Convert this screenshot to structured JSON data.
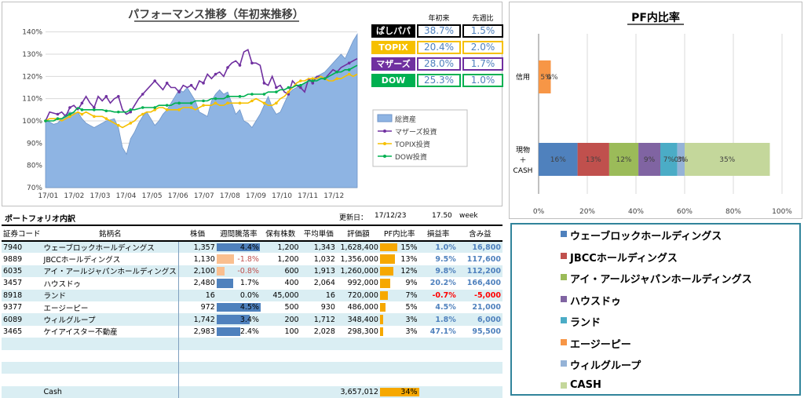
{
  "chart_data": [
    {
      "type": "area+line",
      "title": "パフォーマンス推移（年初来推移）",
      "x_ticks": [
        "17/01",
        "17/02",
        "17/03",
        "17/04",
        "17/05",
        "17/06",
        "17/07",
        "17/08",
        "17/09",
        "17/10",
        "17/11",
        "17/12"
      ],
      "y_ticks": [
        "70%",
        "80%",
        "90%",
        "100%",
        "110%",
        "120%",
        "130%",
        "140%"
      ],
      "ylim": [
        70,
        142
      ],
      "series": [
        {
          "name": "総資産",
          "type": "area",
          "color": "#8eb4e3",
          "values": [
            100,
            99.5,
            98.5,
            99,
            101,
            103,
            104,
            103.5,
            104,
            101,
            99,
            98,
            97,
            98,
            99,
            100,
            100.5,
            101,
            97,
            88,
            85,
            92,
            95,
            99,
            102,
            104,
            101,
            98,
            100,
            103,
            105,
            108,
            111,
            114,
            113,
            115,
            112,
            109,
            104,
            103,
            102,
            109,
            112,
            114,
            112,
            113,
            108,
            103,
            105,
            100,
            99,
            97,
            100,
            103,
            107,
            111,
            106,
            103,
            104,
            108,
            112,
            114,
            115,
            116,
            117,
            118,
            119,
            120,
            121,
            122,
            124,
            126,
            128,
            130,
            128,
            132,
            136,
            139
          ]
        },
        {
          "name": "マザーズ投資",
          "type": "line",
          "color": "#7030a0",
          "values": [
            100,
            104,
            103.5,
            103,
            104,
            102,
            106,
            107,
            105,
            108,
            111,
            108,
            106,
            111,
            109,
            111,
            108,
            110,
            111,
            105,
            103,
            104,
            107,
            110,
            112,
            114,
            116,
            118,
            116,
            114,
            117,
            115,
            115,
            113,
            116,
            115,
            116,
            114,
            118,
            117,
            121,
            119,
            121,
            122,
            120,
            124,
            126,
            127,
            125,
            131,
            132,
            126,
            126,
            125,
            117,
            116,
            120,
            115,
            116,
            113,
            112,
            118,
            116,
            115,
            113,
            119,
            117,
            120,
            120,
            119,
            121,
            123,
            122,
            124,
            125,
            126,
            127,
            128
          ]
        },
        {
          "name": "TOPIX投資",
          "type": "line",
          "color": "#f6c000",
          "values": [
            100,
            101,
            101,
            101,
            100,
            101,
            102,
            103,
            104,
            103,
            104,
            103,
            102,
            102,
            102,
            101,
            100,
            99,
            98,
            97,
            98,
            99,
            100,
            102,
            103,
            104,
            104,
            105,
            106,
            106,
            105,
            105,
            105,
            105,
            106,
            106,
            106,
            105,
            106,
            107,
            107,
            107,
            108,
            107,
            107,
            108,
            108,
            108,
            108,
            108,
            108,
            109,
            110,
            109,
            108,
            107,
            107,
            108,
            110,
            111,
            113,
            115,
            117,
            118,
            118,
            119,
            119,
            119,
            120,
            119,
            118,
            118,
            119,
            119,
            120,
            121,
            120,
            121
          ]
        },
        {
          "name": "DOW投資",
          "type": "line",
          "color": "#00b050",
          "values": [
            100,
            100,
            100,
            101,
            101,
            102,
            103,
            104,
            106,
            105,
            105,
            105,
            105,
            105,
            105,
            104.5,
            104.5,
            104,
            104,
            104,
            104,
            105,
            105,
            105.5,
            106,
            106,
            106,
            106,
            107,
            107,
            107,
            107,
            108,
            108,
            108,
            108,
            108,
            109,
            109,
            109,
            109,
            110,
            110,
            110,
            110,
            111,
            111,
            111,
            111,
            111,
            112,
            112,
            112,
            112,
            112,
            113,
            113,
            113,
            114,
            114,
            115,
            115,
            116,
            116,
            117,
            118,
            118,
            118,
            119,
            119,
            120,
            121,
            122,
            122,
            123,
            123,
            124,
            125
          ]
        }
      ],
      "legend_position": "right"
    },
    {
      "type": "stacked-bar-horizontal",
      "title": "PF内比率",
      "categories": [
        "信用",
        "現物\n＋\nCASH"
      ],
      "x_ticks": [
        "0%",
        "20%",
        "40%",
        "60%",
        "80%",
        "100%"
      ],
      "series": [
        {
          "name": "ウェーブロックホールディングス",
          "color": "#4f81bd",
          "values": [
            0,
            16
          ]
        },
        {
          "name": "JBCCホールディングス",
          "color": "#c0504d",
          "values": [
            0,
            13
          ]
        },
        {
          "name": "アイ・アールジャパンホールディングス",
          "color": "#9bbb59",
          "values": [
            0,
            12
          ]
        },
        {
          "name": "ハウスドゥ",
          "color": "#8064a2",
          "values": [
            0,
            9
          ]
        },
        {
          "name": "ランド",
          "color": "#4bacc6",
          "values": [
            0,
            7
          ]
        },
        {
          "name": "エージーピー",
          "color": "#f79646",
          "values": [
            5,
            0
          ]
        },
        {
          "name": "ウィルグループ",
          "color": "#95b3d7",
          "values": [
            0,
            3
          ]
        },
        {
          "name": "CASH",
          "color": "#c4d79b",
          "values": [
            0,
            35
          ]
        }
      ],
      "labels_shown": {
        "信用": [
          "5%",
          "0%"
        ],
        "現物＋CASH": [
          "16%",
          "13%",
          "12%",
          "9%",
          "7%",
          "0%",
          "3%",
          "35%"
        ]
      }
    }
  ],
  "perf_table": {
    "headers": [
      "年初来",
      "先週比"
    ],
    "rows": [
      {
        "label": "ぱしパパ",
        "ytd": "38.7%",
        "week": "1.5%",
        "bg": "#000000",
        "border": "#000000"
      },
      {
        "label": "TOPIX",
        "ytd": "20.4%",
        "week": "2.0%",
        "bg": "#f6c000",
        "border": "#f6c000"
      },
      {
        "label": "マザーズ",
        "ytd": "28.0%",
        "week": "1.7%",
        "bg": "#7030a0",
        "border": "#7030a0"
      },
      {
        "label": "DOW",
        "ytd": "25.3%",
        "week": "1.0%",
        "bg": "#00b050",
        "border": "#00b050"
      }
    ]
  },
  "portfolio": {
    "title": "ポートフォリオ内訳",
    "updated_label": "更新日：",
    "updated_date": "17/12/23",
    "week_num": "17.50",
    "week_label": "week",
    "columns": [
      "証券コード",
      "銘柄名",
      "株価",
      "週間騰落率",
      "保有株数",
      "平均単価",
      "評価額",
      "PF内比率",
      "損益率",
      "含み益"
    ],
    "rows": [
      {
        "code": "7940",
        "name": "ウェーブロックホールディングス",
        "price": "1,357",
        "weekly": "4.4%",
        "weekly_v": 4.4,
        "shares": "1,200",
        "avg": "1,343",
        "value": "1,628,400",
        "pf": "15%",
        "pf_v": 15,
        "pl_rate": "1.0%",
        "pl_sign": "pos",
        "unreal": "16,800"
      },
      {
        "code": "9889",
        "name": "JBCCホールディングス",
        "price": "1,130",
        "weekly": "-1.8%",
        "weekly_v": -1.8,
        "shares": "1,200",
        "avg": "1,032",
        "value": "1,356,000",
        "pf": "13%",
        "pf_v": 13,
        "pl_rate": "9.5%",
        "pl_sign": "pos",
        "unreal": "117,600"
      },
      {
        "code": "6035",
        "name": "アイ・アールジャパンホールディングス",
        "price": "2,100",
        "weekly": "-0.8%",
        "weekly_v": -0.8,
        "shares": "600",
        "avg": "1,913",
        "value": "1,260,000",
        "pf": "12%",
        "pf_v": 12,
        "pl_rate": "9.8%",
        "pl_sign": "pos",
        "unreal": "112,200"
      },
      {
        "code": "3457",
        "name": "ハウスドゥ",
        "price": "2,480",
        "weekly": "1.7%",
        "weekly_v": 1.7,
        "shares": "400",
        "avg": "2,064",
        "value": "992,000",
        "pf": "9%",
        "pf_v": 9,
        "pl_rate": "20.2%",
        "pl_sign": "pos",
        "unreal": "166,400"
      },
      {
        "code": "8918",
        "name": "ランド",
        "price": "16",
        "weekly": "0.0%",
        "weekly_v": 0,
        "shares": "45,000",
        "avg": "16",
        "value": "720,000",
        "pf": "7%",
        "pf_v": 7,
        "pl_rate": "-0.7%",
        "pl_sign": "neg",
        "unreal": "-5,000"
      },
      {
        "code": "9377",
        "name": "エージーピー",
        "price": "972",
        "weekly": "4.5%",
        "weekly_v": 4.5,
        "shares": "500",
        "avg": "930",
        "value": "486,000",
        "pf": "5%",
        "pf_v": 5,
        "pl_rate": "4.5%",
        "pl_sign": "pos",
        "unreal": "21,000"
      },
      {
        "code": "6089",
        "name": "ウィルグループ",
        "price": "1,742",
        "weekly": "3.4%",
        "weekly_v": 3.4,
        "shares": "200",
        "avg": "1,712",
        "value": "348,400",
        "pf": "3%",
        "pf_v": 3,
        "pl_rate": "1.8%",
        "pl_sign": "pos",
        "unreal": "6,000"
      },
      {
        "code": "3465",
        "name": "ケイアイスター不動産",
        "price": "2,983",
        "weekly": "2.4%",
        "weekly_v": 2.4,
        "shares": "100",
        "avg": "2,028",
        "value": "298,300",
        "pf": "3%",
        "pf_v": 3,
        "pl_rate": "47.1%",
        "pl_sign": "pos",
        "unreal": "95,500"
      }
    ],
    "cash": {
      "label": "Cash",
      "value": "3,657,012",
      "pf": "34%",
      "pf_v": 34
    }
  }
}
